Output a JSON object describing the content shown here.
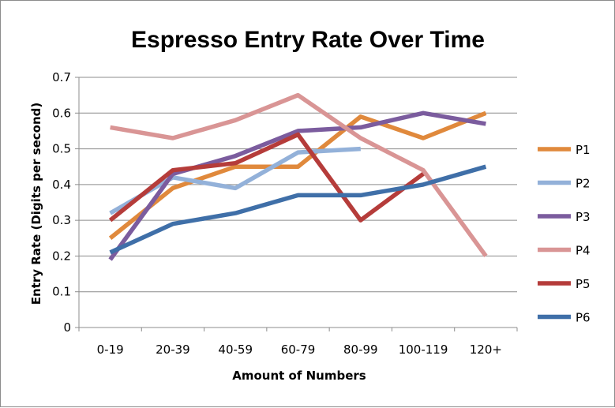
{
  "chart_data": {
    "type": "line",
    "title": "Espresso Entry Rate Over Time",
    "xlabel": "Amount of Numbers",
    "ylabel": "Entry Rate (Digits per second)",
    "ylim": [
      0,
      0.7
    ],
    "yticks": [
      "0",
      "0.1",
      "0.2",
      "0.3",
      "0.4",
      "0.5",
      "0.6",
      "0.7"
    ],
    "grid": true,
    "legend_position": "right",
    "categories": [
      "0-19",
      "20-39",
      "40-59",
      "60-79",
      "80-99",
      "100-119",
      "120+"
    ],
    "series": [
      {
        "name": "P1",
        "color": "#e0893c",
        "values": [
          0.25,
          0.39,
          0.45,
          0.45,
          0.59,
          0.53,
          0.6
        ]
      },
      {
        "name": "P2",
        "color": "#93b1d9",
        "values": [
          0.32,
          0.42,
          0.39,
          0.49,
          0.5,
          null,
          null
        ]
      },
      {
        "name": "P3",
        "color": "#7b5c9e",
        "values": [
          0.19,
          0.43,
          0.48,
          0.55,
          0.56,
          0.6,
          0.57
        ]
      },
      {
        "name": "P4",
        "color": "#d99595",
        "values": [
          0.56,
          0.53,
          0.58,
          0.65,
          0.53,
          0.44,
          0.2
        ]
      },
      {
        "name": "P5",
        "color": "#b53c3a",
        "values": [
          0.3,
          0.44,
          0.46,
          0.54,
          0.3,
          0.43,
          null
        ]
      },
      {
        "name": "P6",
        "color": "#3f6fa8",
        "values": [
          0.21,
          0.29,
          0.32,
          0.37,
          0.37,
          0.4,
          0.45
        ]
      }
    ]
  }
}
